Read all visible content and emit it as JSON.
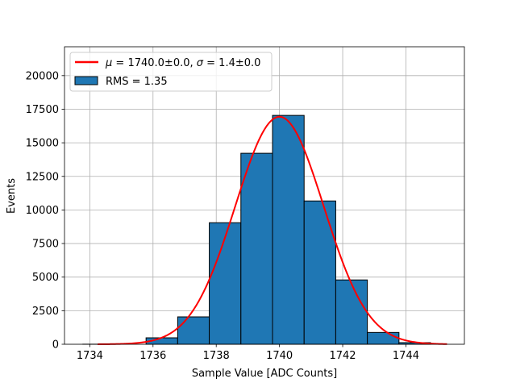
{
  "chart_data": {
    "type": "bar",
    "xlabel": "Sample Value [ADC Counts]",
    "ylabel": "Events",
    "xlim": [
      1733.2,
      1745.85
    ],
    "ylim": [
      0,
      22150
    ],
    "xticks": [
      1734,
      1736,
      1738,
      1740,
      1742,
      1744
    ],
    "yticks": [
      0,
      2500,
      5000,
      7500,
      10000,
      12500,
      15000,
      17500,
      20000
    ],
    "grid": true,
    "legend_position": "top-left",
    "histogram": {
      "name": "RMS = 1.35",
      "bin_edges": [
        1733.78,
        1734.78,
        1735.78,
        1736.78,
        1737.78,
        1738.78,
        1739.78,
        1740.78,
        1741.78,
        1742.78,
        1743.78,
        1744.78
      ],
      "counts": [
        5,
        0,
        480,
        2040,
        9050,
        14220,
        17040,
        10670,
        4790,
        880,
        120
      ],
      "color": "#1f77b4",
      "edgecolor": "#000000"
    },
    "fit": {
      "name": "$\\mu = 1740.0{\\pm}0.0$, $\\sigma = 1.4{\\pm}0.0$",
      "legend_parts": {
        "mu_symbol": "μ",
        "mu_text": " = 1740.0±0.0, ",
        "sigma_symbol": "σ",
        "sigma_text": " = 1.4±0.0"
      },
      "mu": 1740.0,
      "sigma": 1.4,
      "amplitude": 16940,
      "x_range": [
        1734.25,
        1745.3
      ],
      "color": "#ff0000"
    }
  }
}
